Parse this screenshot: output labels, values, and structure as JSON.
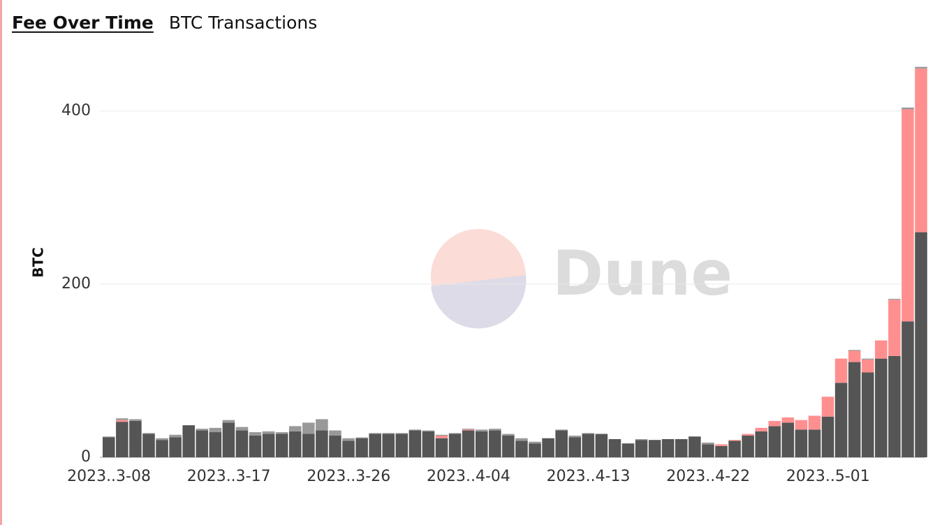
{
  "tabs": [
    "Fee Over Time",
    "BTC Transactions"
  ],
  "chart_data": {
    "type": "stacked-bar",
    "y_label": "BTC",
    "watermark": "Dune",
    "categories": [
      "2023..3-08",
      null,
      null,
      null,
      null,
      null,
      null,
      null,
      null,
      "2023..3-17",
      null,
      null,
      null,
      null,
      null,
      null,
      null,
      null,
      "2023..3-26",
      null,
      null,
      null,
      null,
      null,
      null,
      null,
      null,
      "2023..4-04",
      null,
      null,
      null,
      null,
      null,
      null,
      null,
      null,
      "2023..4-13",
      null,
      null,
      null,
      null,
      null,
      null,
      null,
      null,
      "2023..4-22",
      null,
      null,
      null,
      null,
      null,
      null,
      null,
      null,
      "2023..5-01",
      null,
      null,
      null,
      null,
      null,
      null,
      null
    ],
    "series": [
      {
        "color": "#555555",
        "values": [
          23,
          41,
          42,
          27,
          20,
          23,
          37,
          31,
          29,
          40,
          31,
          25,
          27,
          27,
          30,
          27,
          31,
          25,
          19,
          22,
          27,
          27,
          27,
          31,
          30,
          22,
          27,
          31,
          30,
          31,
          25,
          19,
          16,
          22,
          31,
          23,
          27,
          27,
          21,
          16,
          20,
          20,
          21,
          21,
          24,
          15,
          13,
          19,
          25,
          30,
          36,
          40,
          32,
          32,
          47,
          86,
          110,
          98,
          114,
          117,
          157,
          260
        ]
      },
      {
        "color": "#ff8f8f",
        "values": [
          0,
          2,
          0,
          0,
          0,
          0,
          0,
          0,
          0,
          0,
          0,
          0,
          0,
          0,
          0,
          0,
          0,
          0,
          0,
          0,
          0,
          0,
          0,
          0,
          0,
          3,
          0,
          1,
          0,
          0,
          0,
          0,
          0,
          0,
          0,
          0,
          0,
          0,
          0,
          0,
          0,
          0,
          0,
          0,
          0,
          0,
          2,
          1,
          2,
          4,
          6,
          6,
          11,
          16,
          23,
          28,
          13,
          15,
          21,
          65,
          245,
          189
        ]
      },
      {
        "color": "#999999",
        "values": [
          1,
          2,
          2,
          1,
          2,
          3,
          0,
          2,
          5,
          3,
          4,
          4,
          3,
          2,
          6,
          13,
          13,
          6,
          3,
          1,
          1,
          1,
          1,
          1,
          1,
          1,
          1,
          1,
          2,
          2,
          2,
          3,
          2,
          0,
          1,
          2,
          1,
          0,
          0,
          0,
          1,
          0,
          0,
          0,
          0,
          2,
          0,
          0,
          0,
          0,
          0,
          0,
          0,
          0,
          0,
          0,
          1,
          1,
          0,
          1,
          2,
          2
        ]
      }
    ],
    "ylim": [
      0,
      450
    ],
    "yticks": [
      0,
      200,
      400
    ],
    "grid": true
  }
}
